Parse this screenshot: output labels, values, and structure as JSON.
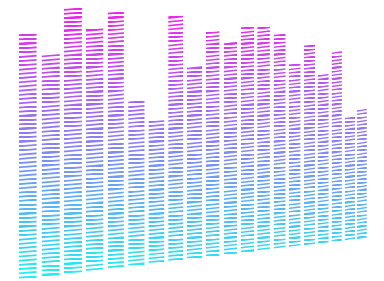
{
  "chart_data": {
    "type": "bar",
    "categories": [
      null,
      null,
      null,
      null,
      null,
      null,
      null,
      null,
      null,
      null,
      null,
      null,
      null,
      null,
      null,
      null,
      null,
      null,
      null,
      null
    ],
    "values": [
      90,
      82,
      99,
      91,
      98,
      64,
      56,
      96,
      75,
      89,
      85,
      92,
      91,
      88,
      75,
      84,
      71,
      81,
      53,
      56
    ],
    "ylim": [
      0,
      100
    ],
    "gradient": [
      "#1ff0f2",
      "#8c80f2",
      "#f21ee8"
    ]
  }
}
